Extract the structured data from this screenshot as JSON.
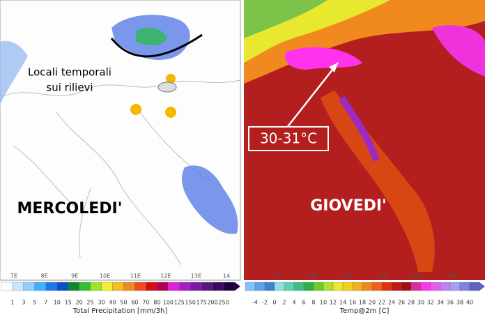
{
  "left_panel": {
    "annotation": [
      "Locali temporali",
      "sui rilievi"
    ],
    "day_label": "MERCOLEDI'",
    "lon_labels": [
      "7E",
      "8E",
      "9E",
      "10E",
      "11E",
      "12E",
      "13E",
      "14"
    ],
    "colorbar": {
      "labels": [
        "1",
        "3",
        "5",
        "7",
        "10",
        "15",
        "20",
        "25",
        "30",
        "40",
        "50",
        "60",
        "70",
        "80",
        "100",
        "125",
        "150",
        "175",
        "200",
        "250"
      ],
      "title": "Total Precipitation [mm/3h]"
    }
  },
  "right_panel": {
    "callout": "30-31°C",
    "day_label": "GIOVEDI'",
    "lon_labels": [
      "8E",
      "10E",
      "12E",
      "14E",
      "16E",
      "18E"
    ],
    "colorbar": {
      "labels": [
        "-4",
        "-2",
        "0",
        "2",
        "4",
        "6",
        "8",
        "10",
        "12",
        "14",
        "16",
        "18",
        "20",
        "22",
        "24",
        "26",
        "28",
        "30",
        "32",
        "34",
        "36",
        "38",
        "40"
      ],
      "title": "Temp@2m [C]"
    }
  }
}
